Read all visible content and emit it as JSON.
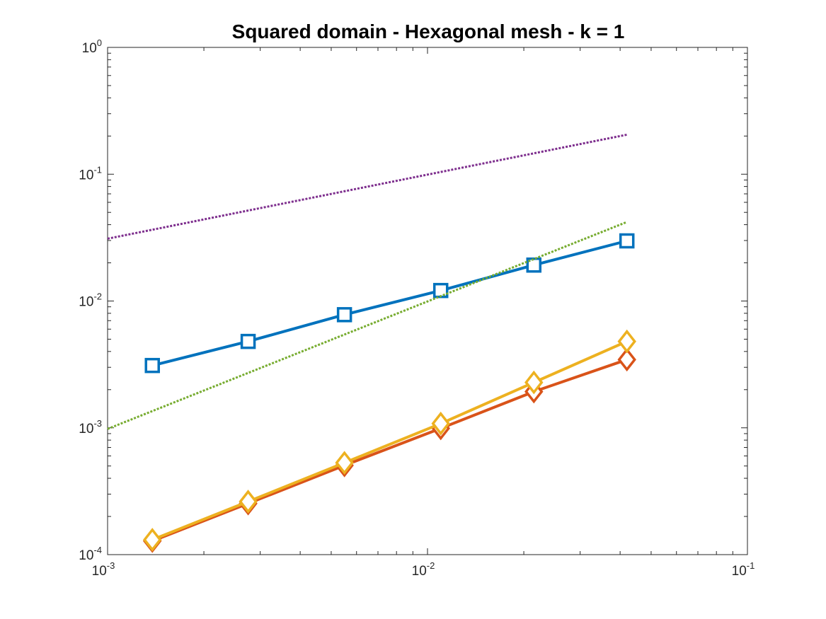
{
  "chart_data": {
    "type": "line",
    "title": "Squared domain - Hexagonal mesh - k = 1",
    "xlabel": "",
    "ylabel": "",
    "xscale": "log",
    "yscale": "log",
    "xlim": [
      0.001,
      0.1
    ],
    "ylim": [
      0.0001,
      1
    ],
    "grid": false,
    "legend": "none",
    "x_ticks": [
      {
        "base": "10",
        "exp": "-3"
      },
      {
        "base": "10",
        "exp": "-2"
      },
      {
        "base": "10",
        "exp": "-1"
      }
    ],
    "y_ticks": [
      {
        "base": "10",
        "exp": "-4"
      },
      {
        "base": "10",
        "exp": "-3"
      },
      {
        "base": "10",
        "exp": "-2"
      },
      {
        "base": "10",
        "exp": "-1"
      },
      {
        "base": "10",
        "exp": "0"
      }
    ],
    "series": [
      {
        "color": "#0072BD",
        "marker": "square",
        "style": "solid",
        "x": [
          0.00138,
          0.00275,
          0.0055,
          0.011,
          0.0215,
          0.042
        ],
        "y": [
          0.0031,
          0.0048,
          0.0078,
          0.0121,
          0.0192,
          0.0298
        ]
      },
      {
        "color": "#D95319",
        "marker": "diamond",
        "style": "solid",
        "x": [
          0.00138,
          0.00275,
          0.0055,
          0.011,
          0.0215,
          0.042
        ],
        "y": [
          0.000128,
          0.000253,
          0.000505,
          0.00099,
          0.00193,
          0.00345
        ]
      },
      {
        "color": "#EDB120",
        "marker": "diamond",
        "style": "solid",
        "x": [
          0.00138,
          0.00275,
          0.0055,
          0.011,
          0.0215,
          0.042
        ],
        "y": [
          0.000131,
          0.000262,
          0.00053,
          0.00108,
          0.00228,
          0.0048
        ]
      },
      {
        "color": "#7E2F8E",
        "marker": "none",
        "style": "dotted",
        "x": [
          0.001,
          0.042
        ],
        "y": [
          0.031,
          0.205
        ]
      },
      {
        "color": "#77AC30",
        "marker": "none",
        "style": "dotted",
        "x": [
          0.001,
          0.042
        ],
        "y": [
          0.00098,
          0.042
        ]
      }
    ]
  }
}
